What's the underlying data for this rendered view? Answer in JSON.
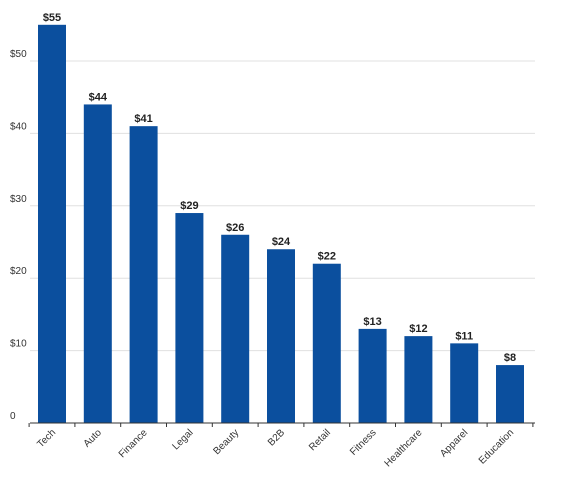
{
  "chart_data": {
    "type": "bar",
    "title": "",
    "xlabel": "",
    "ylabel": "",
    "categories": [
      "Tech",
      "Auto",
      "Finance",
      "Legal",
      "Beauty",
      "B2B",
      "Retail",
      "Fitness",
      "Healthcare",
      "Apparel",
      "Education"
    ],
    "values": [
      55,
      44,
      41,
      29,
      26,
      24,
      22,
      13,
      12,
      11,
      8
    ],
    "data_labels": [
      "$55",
      "$44",
      "$41",
      "$29",
      "$26",
      "$24",
      "$22",
      "$13",
      "$12",
      "$11",
      "$8"
    ],
    "ylim": [
      0,
      55
    ],
    "yticks": [
      0,
      10,
      20,
      30,
      40,
      50
    ],
    "ytick_labels": [
      "0",
      "$10",
      "$20",
      "$30",
      "$40",
      "$50"
    ],
    "grid": true,
    "legend": "none",
    "bar_color": "#0b4f9e",
    "grid_color": "#e0e0e0",
    "axis_color": "#333333"
  }
}
